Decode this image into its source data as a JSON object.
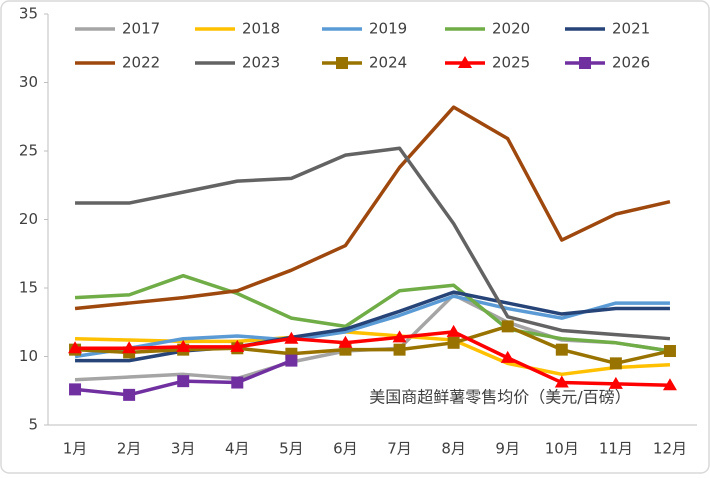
{
  "chart_data": {
    "type": "line",
    "annotation": "美国商超鲜薯零售均价（美元/百磅）",
    "categories": [
      "1月",
      "2月",
      "3月",
      "4月",
      "5月",
      "6月",
      "7月",
      "8月",
      "9月",
      "10月",
      "11月",
      "12月"
    ],
    "ylim": [
      5,
      35
    ],
    "yticks": [
      5,
      10,
      15,
      20,
      25,
      30,
      35
    ],
    "grid": false,
    "series": [
      {
        "name": "2017",
        "color": "#a5a5a5",
        "values": [
          8.3,
          8.5,
          8.7,
          8.4,
          9.6,
          10.4,
          10.6,
          14.5,
          12.5,
          11.2,
          11.0,
          10.4
        ]
      },
      {
        "name": "2018",
        "color": "#ffc000",
        "values": [
          11.3,
          11.2,
          11.1,
          11.1,
          11.4,
          11.8,
          11.5,
          11.2,
          9.5,
          8.7,
          9.2,
          9.4
        ]
      },
      {
        "name": "2019",
        "color": "#5b9bd5",
        "values": [
          10.0,
          10.6,
          11.3,
          11.5,
          11.2,
          11.8,
          13.0,
          14.4,
          13.5,
          12.8,
          13.9,
          13.9
        ]
      },
      {
        "name": "2020",
        "color": "#70ad47",
        "values": [
          14.3,
          14.5,
          15.9,
          14.6,
          12.8,
          12.2,
          14.8,
          15.2,
          12.0,
          11.3,
          11.0,
          10.4
        ]
      },
      {
        "name": "2021",
        "color": "#264478",
        "values": [
          9.7,
          9.7,
          10.4,
          10.7,
          11.4,
          12.0,
          13.3,
          14.7,
          13.9,
          13.1,
          13.5,
          13.5
        ]
      },
      {
        "name": "2022",
        "color": "#9e480e",
        "values": [
          13.5,
          13.9,
          14.3,
          14.8,
          16.3,
          18.1,
          23.8,
          28.2,
          25.9,
          18.5,
          20.4,
          21.3
        ]
      },
      {
        "name": "2023",
        "color": "#636363",
        "values": [
          21.2,
          21.2,
          22.0,
          22.8,
          23.0,
          24.7,
          25.2,
          19.7,
          12.9,
          11.9,
          11.6,
          11.3
        ]
      },
      {
        "name": "2024",
        "color": "#997300",
        "marker": "square",
        "values": [
          10.5,
          10.3,
          10.5,
          10.6,
          10.2,
          10.5,
          10.5,
          11.0,
          12.2,
          10.5,
          9.5,
          10.4
        ]
      },
      {
        "name": "2025",
        "color": "#ff0000",
        "marker": "triangle",
        "values": [
          10.6,
          10.6,
          10.7,
          10.7,
          11.3,
          11.0,
          11.4,
          11.8,
          9.9,
          8.1,
          8.0,
          7.9
        ]
      },
      {
        "name": "2026",
        "color": "#7030a0",
        "marker": "square",
        "values": [
          7.6,
          7.2,
          8.2,
          8.1,
          9.7,
          null,
          null,
          null,
          null,
          null,
          null,
          null
        ]
      }
    ]
  }
}
